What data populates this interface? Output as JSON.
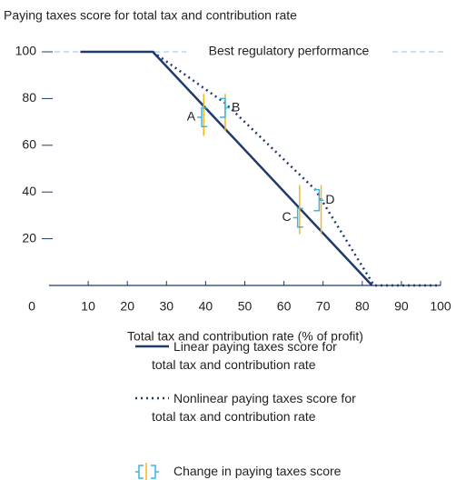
{
  "chart_data": {
    "type": "line",
    "title": "Paying taxes score for total tax and contribution rate",
    "xlabel": "Total tax and contribution rate (% of profit)",
    "xlim": [
      0,
      100
    ],
    "ylim": [
      0,
      100
    ],
    "xticks": [
      0,
      10,
      20,
      30,
      40,
      50,
      60,
      70,
      80,
      90,
      100
    ],
    "yticks": [
      20,
      40,
      60,
      80,
      100
    ],
    "reference_line": {
      "value": 100,
      "label": "Best regulatory performance",
      "color": "#8fc6e0"
    },
    "series": [
      {
        "name": "Linear paying taxes score for\ntotal tax and contribution rate",
        "color": "#1f3a6e",
        "style": "solid",
        "x": [
          8,
          26.5,
          82.5
        ],
        "values": [
          100,
          100,
          0
        ]
      },
      {
        "name": "Nonlinear paying taxes score for\ntotal tax and contribution rate",
        "color": "#1f3a6e",
        "style": "dotted",
        "x": [
          26.5,
          45,
          68,
          83,
          100
        ],
        "values": [
          100,
          78,
          41,
          0,
          0
        ]
      }
    ],
    "annotations": [
      {
        "label": "A",
        "x": 39,
        "y": [
          68,
          76
        ],
        "side": "left"
      },
      {
        "label": "B",
        "x": 45,
        "y": [
          72,
          80
        ],
        "side": "right"
      },
      {
        "label": "C",
        "x": 63.5,
        "y": [
          25,
          33
        ],
        "side": "left"
      },
      {
        "label": "D",
        "x": 69,
        "y": [
          32,
          41
        ],
        "side": "right"
      }
    ],
    "annotation_color": "#3cb4e6",
    "markers": [
      {
        "x": 39.5,
        "y": [
          64,
          82
        ]
      },
      {
        "x": 45,
        "y": [
          66,
          82
        ]
      },
      {
        "x": 64,
        "y": [
          22,
          43
        ]
      },
      {
        "x": 69.5,
        "y": [
          22,
          43
        ]
      }
    ],
    "marker_color": "#f2b81c",
    "annotation_legend": "Change in paying taxes score"
  }
}
